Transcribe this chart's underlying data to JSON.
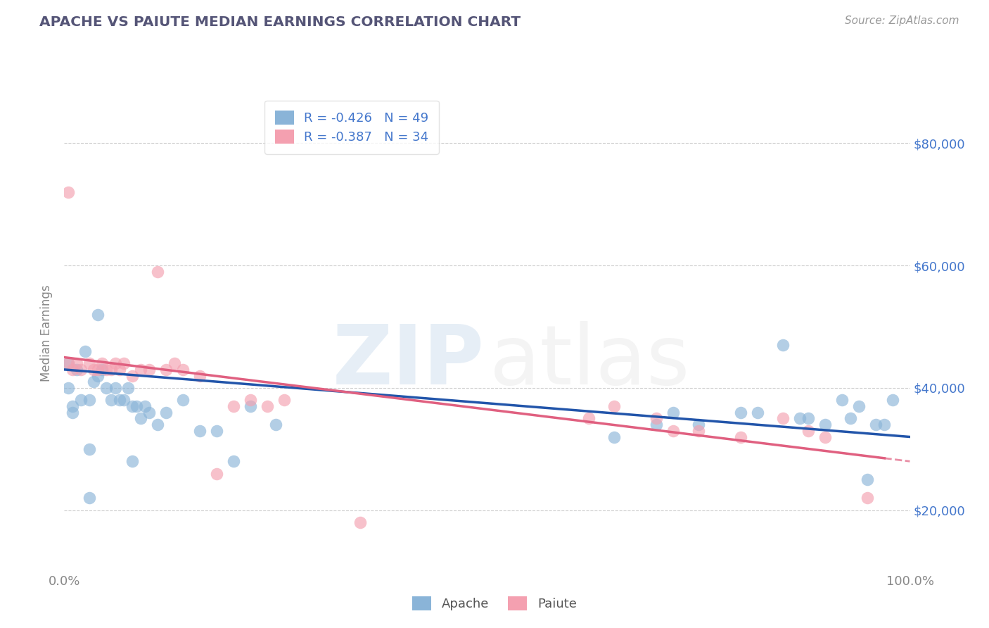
{
  "title": "APACHE VS PAIUTE MEDIAN EARNINGS CORRELATION CHART",
  "source": "Source: ZipAtlas.com",
  "ylabel": "Median Earnings",
  "x_min": 0.0,
  "x_max": 1.0,
  "y_min": 10000,
  "y_max": 88000,
  "y_ticks": [
    20000,
    40000,
    60000,
    80000
  ],
  "y_tick_labels": [
    "$20,000",
    "$40,000",
    "$60,000",
    "$80,000"
  ],
  "apache_color": "#8ab4d8",
  "paiute_color": "#f4a0b0",
  "apache_line_color": "#2255aa",
  "paiute_line_color": "#e06080",
  "title_color": "#555577",
  "source_color": "#999999",
  "grid_color": "#cccccc",
  "ytick_color": "#4477cc",
  "xtick_color": "#888888",
  "ylabel_color": "#888888",
  "apache_R": -0.426,
  "apache_N": 49,
  "paiute_R": -0.387,
  "paiute_N": 34,
  "apache_line_y0": 43000,
  "apache_line_y1": 32000,
  "paiute_line_y0": 45000,
  "paiute_line_y1": 28000,
  "paiute_line_x_end": 0.97,
  "apache_x": [
    0.005,
    0.01,
    0.015,
    0.02,
    0.025,
    0.03,
    0.035,
    0.04,
    0.045,
    0.05,
    0.055,
    0.06,
    0.065,
    0.07,
    0.075,
    0.08,
    0.085,
    0.09,
    0.095,
    0.1,
    0.11,
    0.12,
    0.14,
    0.16,
    0.18,
    0.2,
    0.22,
    0.25,
    0.65,
    0.7,
    0.72,
    0.75,
    0.8,
    0.82,
    0.85,
    0.87,
    0.88,
    0.9,
    0.92,
    0.93,
    0.94,
    0.95,
    0.96,
    0.97,
    0.98,
    0.005,
    0.01,
    0.03,
    0.08
  ],
  "apache_y": [
    44000,
    37000,
    43000,
    38000,
    46000,
    38000,
    41000,
    42000,
    43000,
    40000,
    38000,
    40000,
    38000,
    38000,
    40000,
    37000,
    37000,
    35000,
    37000,
    36000,
    34000,
    36000,
    38000,
    33000,
    33000,
    28000,
    37000,
    34000,
    32000,
    34000,
    36000,
    34000,
    36000,
    36000,
    47000,
    35000,
    35000,
    34000,
    38000,
    35000,
    37000,
    25000,
    34000,
    34000,
    38000,
    40000,
    36000,
    30000,
    28000
  ],
  "paiute_x": [
    0.005,
    0.01,
    0.015,
    0.02,
    0.03,
    0.035,
    0.04,
    0.045,
    0.05,
    0.055,
    0.06,
    0.065,
    0.07,
    0.08,
    0.09,
    0.1,
    0.12,
    0.13,
    0.14,
    0.16,
    0.2,
    0.22,
    0.24,
    0.26,
    0.62,
    0.65,
    0.7,
    0.72,
    0.75,
    0.8,
    0.85,
    0.88,
    0.9,
    0.95
  ],
  "paiute_y": [
    44000,
    43000,
    44000,
    43000,
    44000,
    43000,
    43000,
    44000,
    43000,
    43000,
    44000,
    43000,
    44000,
    42000,
    43000,
    43000,
    43000,
    44000,
    43000,
    42000,
    37000,
    38000,
    37000,
    38000,
    35000,
    37000,
    35000,
    33000,
    33000,
    32000,
    35000,
    33000,
    32000,
    22000
  ]
}
